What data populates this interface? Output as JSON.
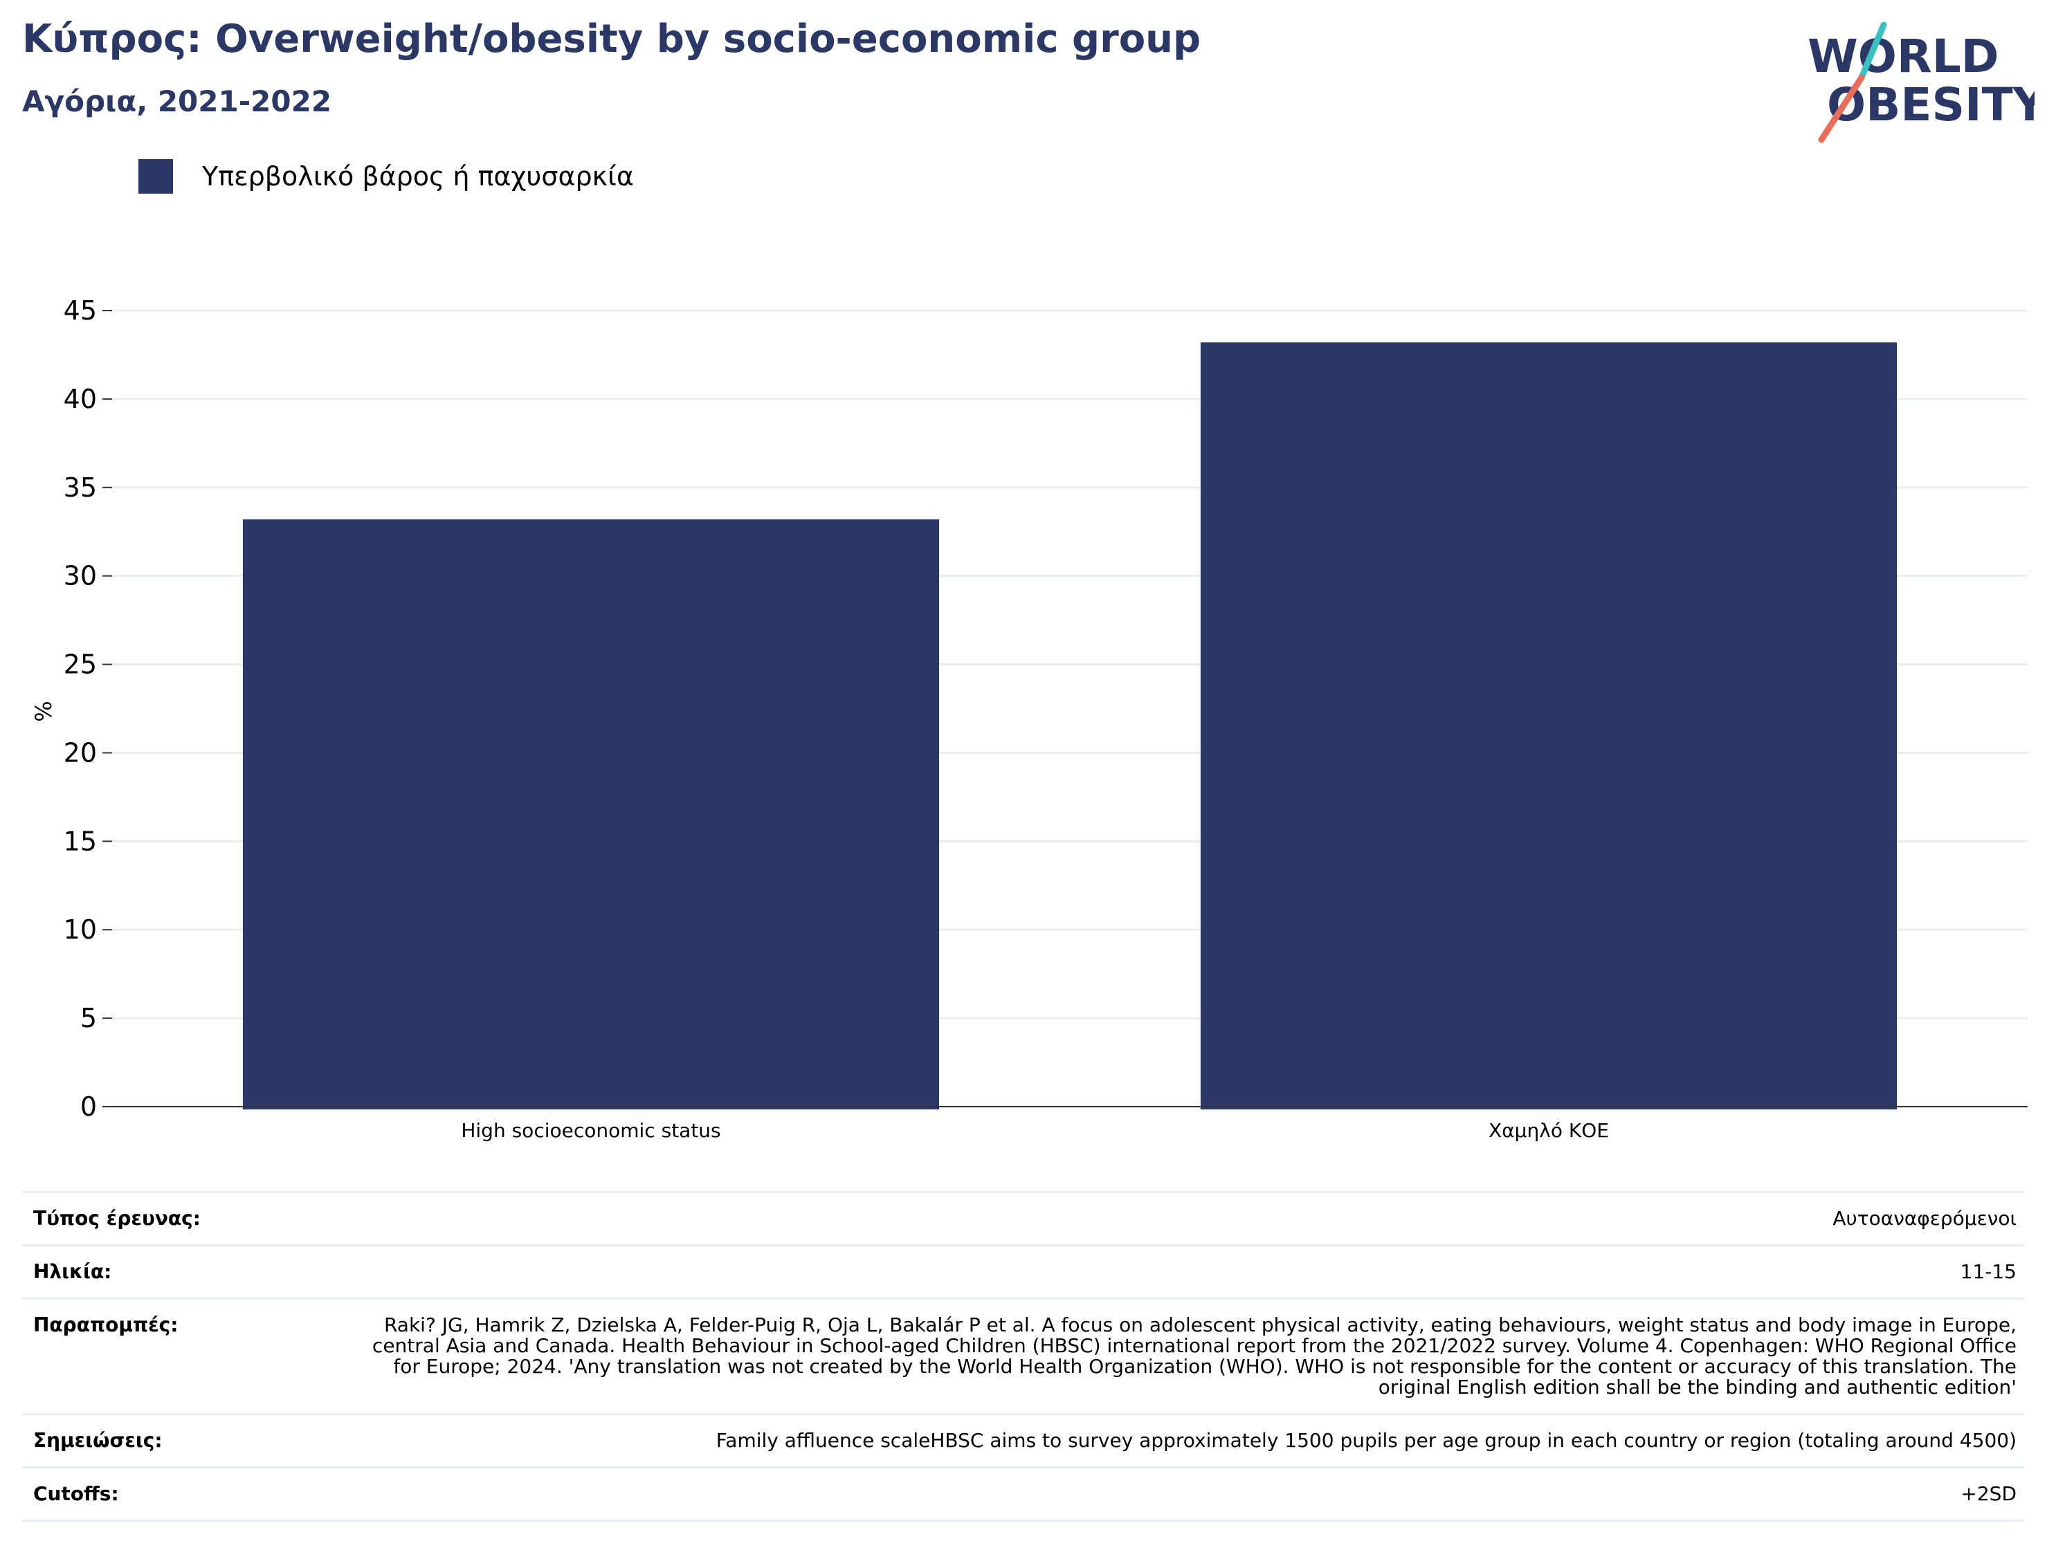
{
  "header": {
    "title": "Κύπρος: Overweight/obesity by socio-economic group",
    "subtitle": "Αγόρια, 2021-2022",
    "logo": {
      "line1": "WORLD",
      "line2": "OBESITY",
      "colors": {
        "text": "#2b3764",
        "slash_top": "#3bbfc0",
        "slash_bottom": "#e86d5b"
      }
    }
  },
  "chart_data": {
    "type": "bar",
    "categories": [
      "High socioeconomic status",
      "Χαμηλό ΚΟΕ"
    ],
    "series": [
      {
        "name": "Υπερβολικό βάρος ή παχυσαρκία",
        "values": [
          33.2,
          43.2
        ],
        "color": "#2b3764"
      }
    ],
    "ylabel": "%",
    "ylim": [
      0,
      45
    ],
    "yticks": [
      0,
      5,
      10,
      15,
      20,
      25,
      30,
      35,
      40,
      45
    ],
    "grid": true,
    "legend_position": "top-left"
  },
  "info": {
    "rows": [
      {
        "label": "Τύπος έρευνας:",
        "value": "Αυτοαναφερόμενοι"
      },
      {
        "label": "Ηλικία:",
        "value": "11-15"
      },
      {
        "label": "Παραπομπές:",
        "value": "Raki? JG, Hamrik Z, Dzielska A, Felder-Puig R, Oja L, Bakalár P et al. A focus on adolescent physical activity, eating behaviours, weight status and body image in Europe, central Asia and Canada. Health Behaviour in School-aged Children (HBSC) international report from the 2021/2022 survey. Volume 4. Copenhagen: WHO Regional Office for Europe; 2024. 'Any translation was not created by the World Health Organization (WHO). WHO is not responsible for the content or accuracy of this translation. The original English edition shall be the binding and authentic edition'"
      },
      {
        "label": "Σημειώσεις:",
        "value": "Family affluence scaleHBSC aims to survey approximately 1500 pupils per age group in each country or region (totaling around 4500)"
      },
      {
        "label": "Cutoffs:",
        "value": "+2SD"
      }
    ]
  }
}
